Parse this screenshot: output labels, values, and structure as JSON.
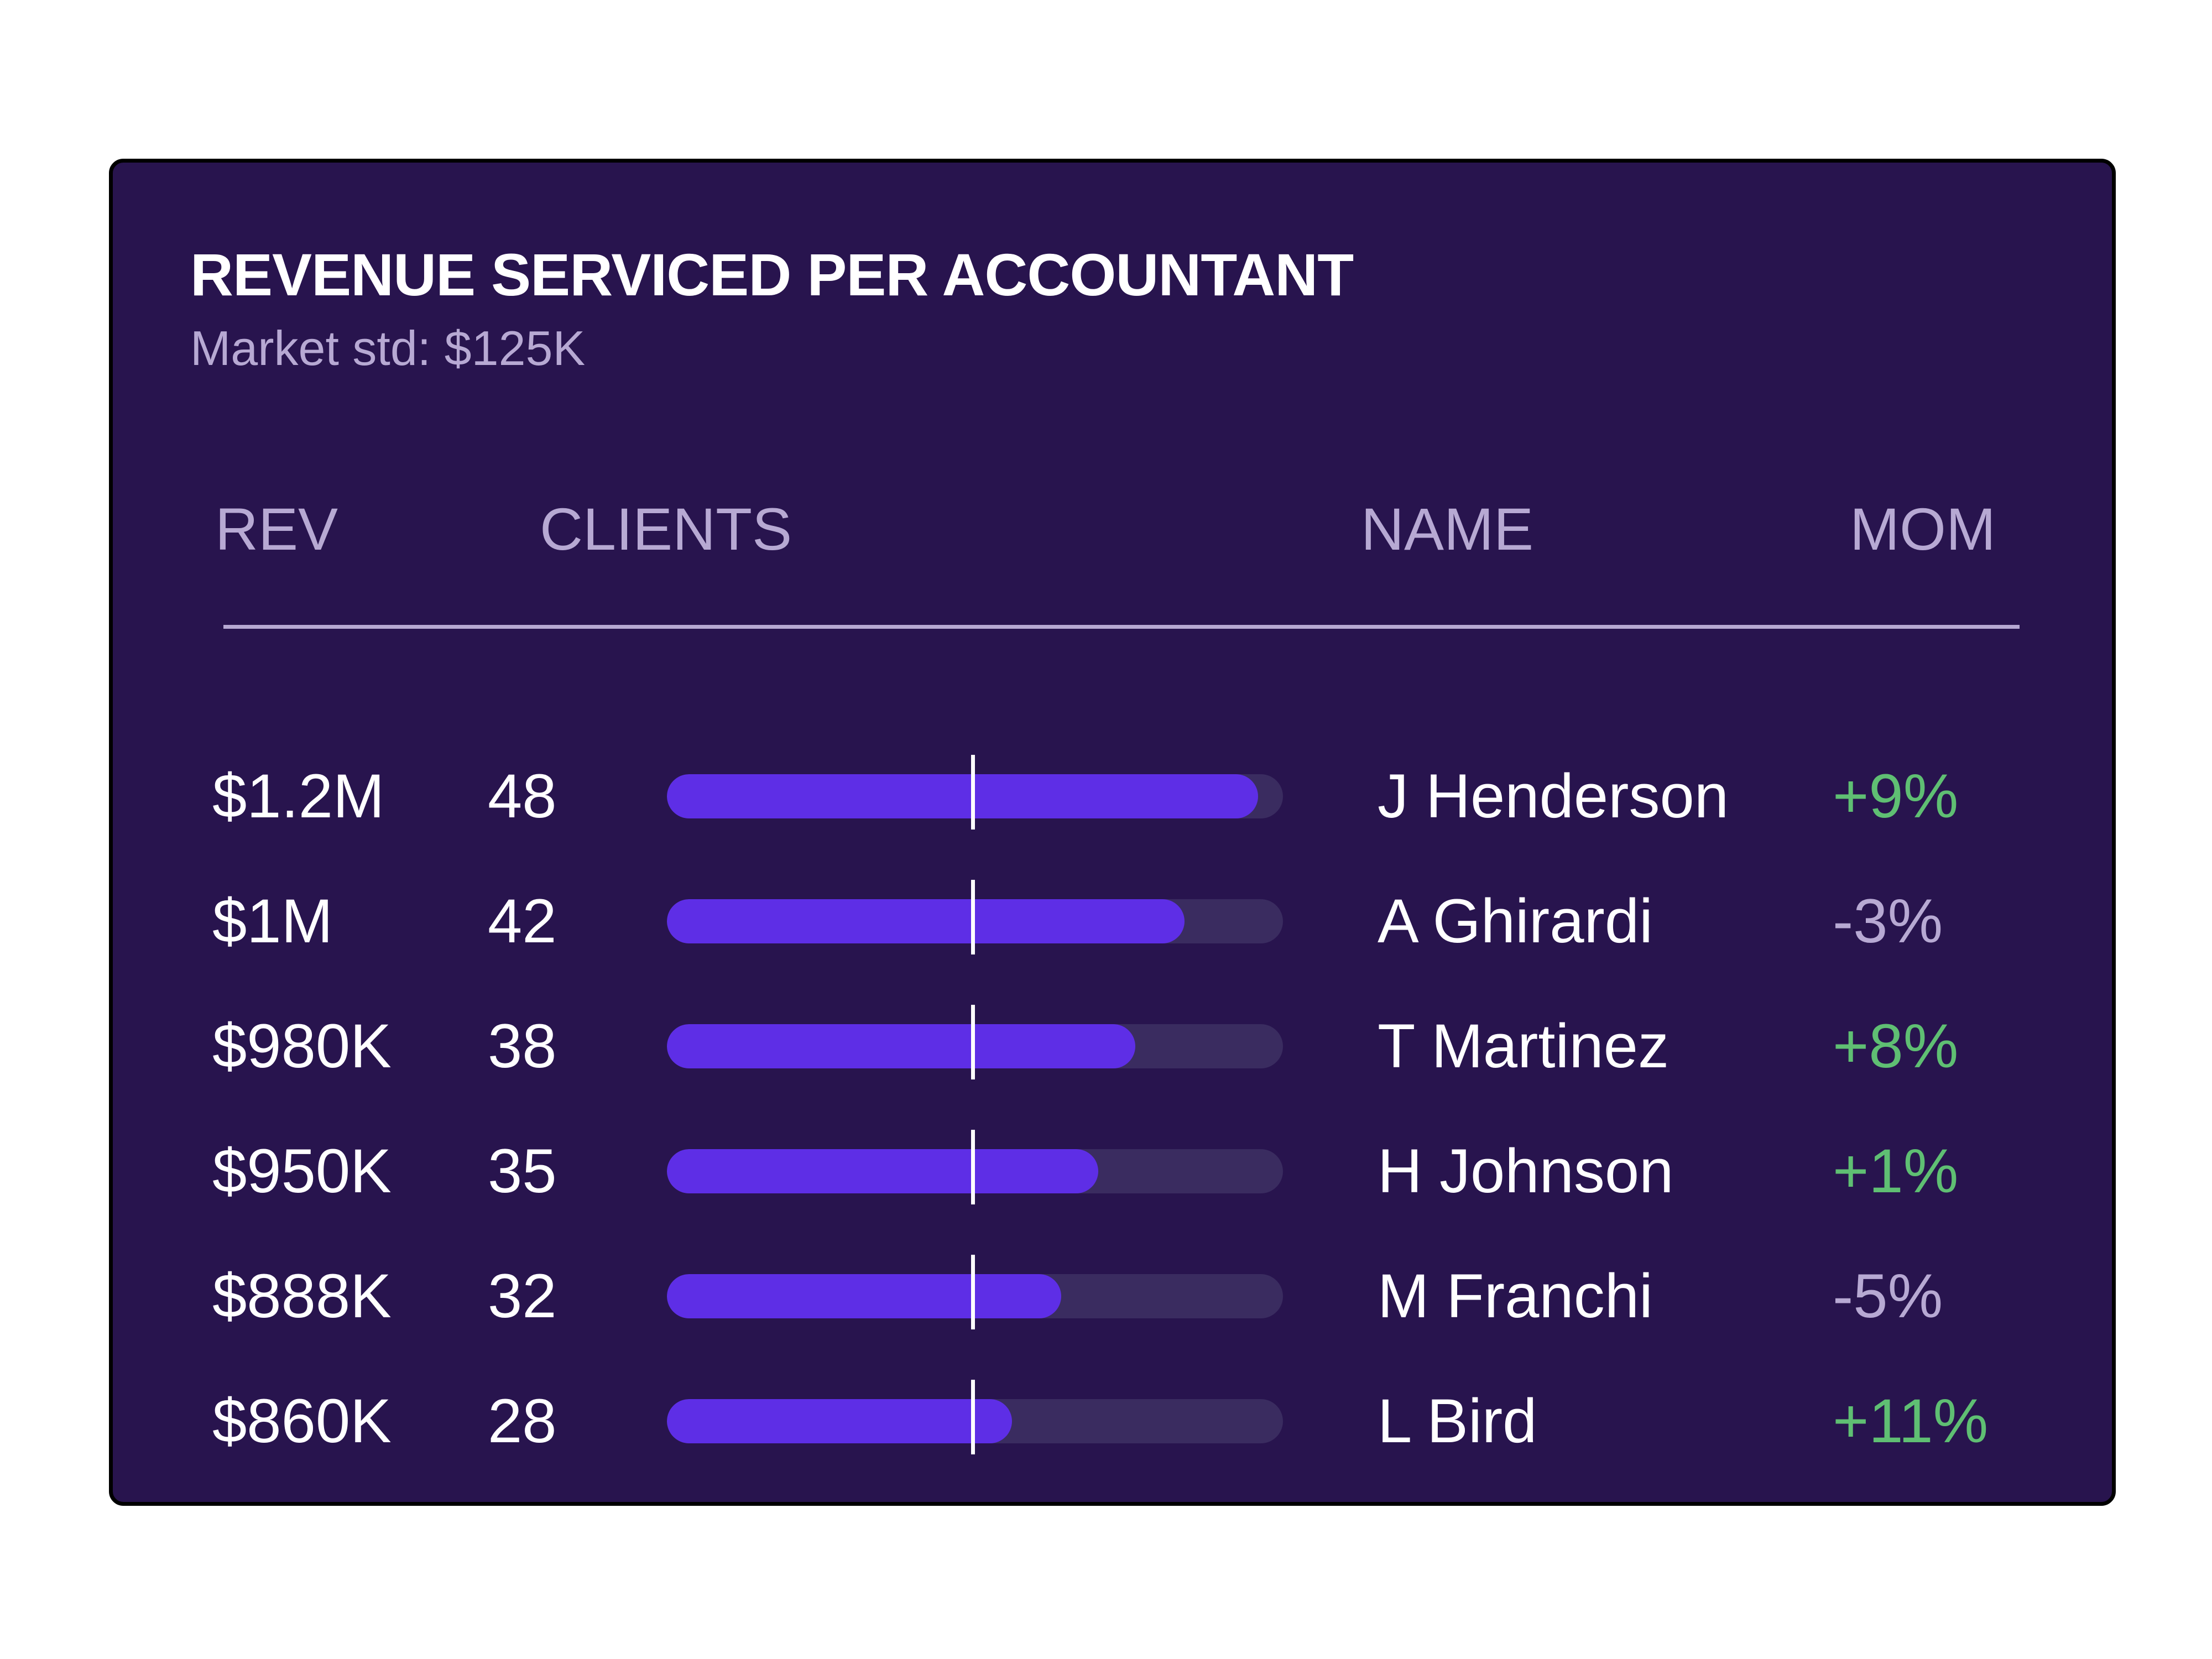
{
  "card": {
    "title": "REVENUE SERVICED PER ACCOUNTANT",
    "subtitle": "Market std: $125K"
  },
  "headers": {
    "rev": "REV",
    "clients": "CLIENTS",
    "name": "NAME",
    "mom": "MOM"
  },
  "colors": {
    "background": "#28144e",
    "bar_fill": "#5e2ee6",
    "bar_track": "#3a2c60",
    "positive": "#5fbf73",
    "negative": "#b7a9d3",
    "muted_text": "#b7a9d3"
  },
  "chart_data": {
    "type": "bar",
    "orientation": "horizontal",
    "title": "REVENUE SERVICED PER ACCOUNTANT",
    "subtitle": "Market std: $125K",
    "categories": [
      "J Henderson",
      "A Ghirardi",
      "T Martinez",
      "H Johnson",
      "M Franchi",
      "L Bird"
    ],
    "values": [
      48,
      42,
      38,
      35,
      32,
      28
    ],
    "xlim": [
      0,
      50
    ],
    "reference_line": 24.8,
    "grid": false,
    "legend": "none"
  },
  "rows": [
    {
      "rev": "$1.2M",
      "clients": "48",
      "name": "J Henderson",
      "mom": "+9%",
      "trend": "up"
    },
    {
      "rev": "$1M",
      "clients": "42",
      "name": "A Ghirardi",
      "mom": "-3%",
      "trend": "down"
    },
    {
      "rev": "$980K",
      "clients": "38",
      "name": "T Martinez",
      "mom": "+8%",
      "trend": "up"
    },
    {
      "rev": "$950K",
      "clients": "35",
      "name": "H Johnson",
      "mom": "+1%",
      "trend": "up"
    },
    {
      "rev": "$888K",
      "clients": "32",
      "name": "M Franchi",
      "mom": "-5%",
      "trend": "down"
    },
    {
      "rev": "$860K",
      "clients": "28",
      "name": "L Bird",
      "mom": "+11%",
      "trend": "up"
    }
  ]
}
